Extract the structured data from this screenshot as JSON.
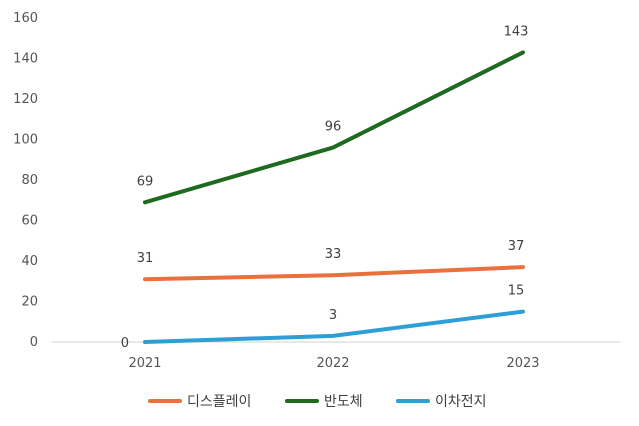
{
  "chart_data": {
    "type": "line",
    "categories": [
      "2021",
      "2022",
      "2023"
    ],
    "ylim": [
      0,
      160
    ],
    "yticks": [
      0,
      20,
      40,
      60,
      80,
      100,
      120,
      140,
      160
    ],
    "grid": false,
    "legend_position": "bottom",
    "series": [
      {
        "name": "디스플레이",
        "color": "#e8713c",
        "values": [
          31,
          33,
          37
        ],
        "labels": [
          "31",
          "33",
          "37"
        ]
      },
      {
        "name": "반도체",
        "color": "#1e6a1e",
        "values": [
          69,
          96,
          143
        ],
        "labels": [
          "69",
          "96",
          "143"
        ]
      },
      {
        "name": "이차전지",
        "color": "#2e9fd6",
        "values": [
          0,
          3,
          15
        ],
        "labels": [
          "0",
          "3",
          "15"
        ]
      }
    ]
  }
}
